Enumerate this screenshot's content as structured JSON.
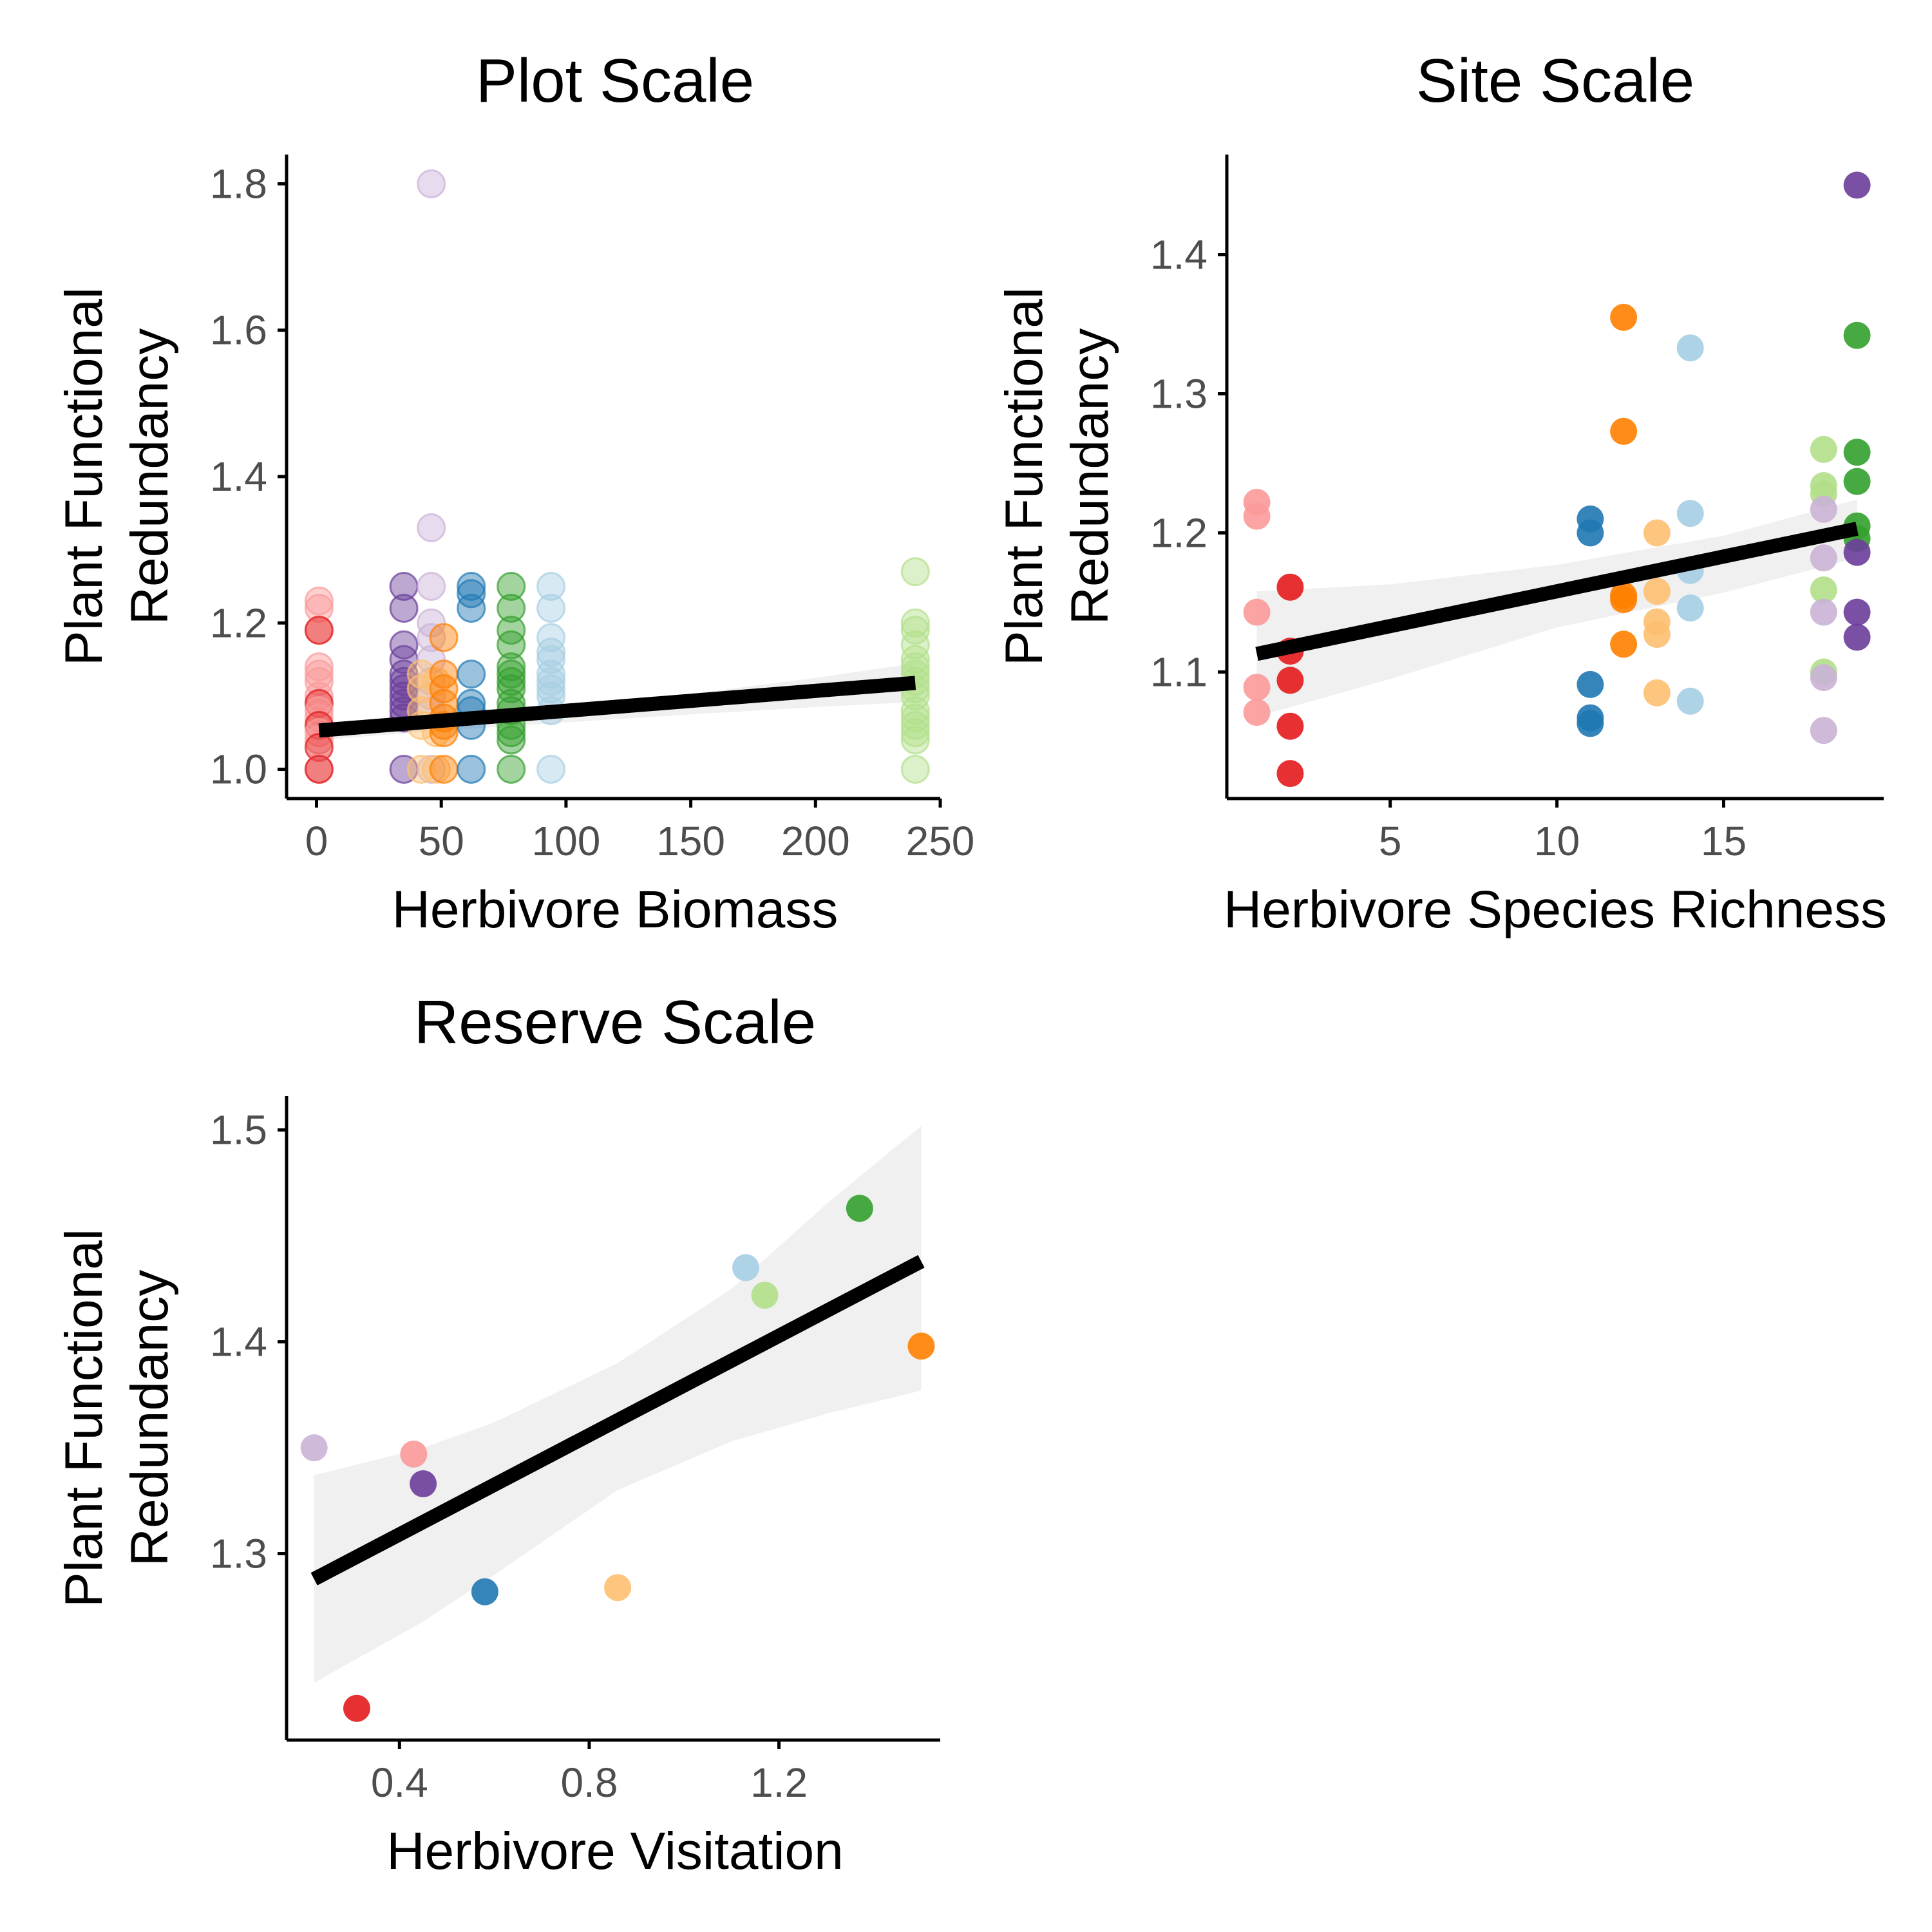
{
  "chart_data": [
    {
      "type": "scatter",
      "title": "Plot Scale",
      "xlabel": "Herbivore Biomass",
      "ylabel_lines": [
        "Plant Functional",
        "Redundancy"
      ],
      "xlim": [
        -12,
        250
      ],
      "ylim": [
        0.96,
        1.84
      ],
      "xticks": [
        0,
        50,
        100,
        150,
        200,
        250
      ],
      "yticks": [
        1.0,
        1.2,
        1.4,
        1.6,
        1.8
      ],
      "xtick_labels": [
        "0",
        "50",
        "100",
        "150",
        "200",
        "250"
      ],
      "ytick_labels": [
        "1.0",
        "1.2",
        "1.4",
        "1.6",
        "1.8"
      ],
      "point_opacity": 0.45,
      "points": [
        {
          "x": 1,
          "y": 1.23,
          "color": "#fb9a99"
        },
        {
          "x": 1,
          "y": 1.22,
          "color": "#fb9a99"
        },
        {
          "x": 1,
          "y": 1.19,
          "color": "#fb9a99"
        },
        {
          "x": 1,
          "y": 1.19,
          "color": "#e31a1c"
        },
        {
          "x": 1,
          "y": 1.14,
          "color": "#fb9a99"
        },
        {
          "x": 1,
          "y": 1.13,
          "color": "#fb9a99"
        },
        {
          "x": 1,
          "y": 1.12,
          "color": "#fb9a99"
        },
        {
          "x": 1,
          "y": 1.1,
          "color": "#fb9a99"
        },
        {
          "x": 1,
          "y": 1.09,
          "color": "#e31a1c"
        },
        {
          "x": 1,
          "y": 1.08,
          "color": "#fb9a99"
        },
        {
          "x": 1,
          "y": 1.07,
          "color": "#fb9a99"
        },
        {
          "x": 1,
          "y": 1.06,
          "color": "#e31a1c"
        },
        {
          "x": 1,
          "y": 1.05,
          "color": "#fb9a99"
        },
        {
          "x": 1,
          "y": 1.04,
          "color": "#fb9a99"
        },
        {
          "x": 1,
          "y": 1.03,
          "color": "#e31a1c"
        },
        {
          "x": 1,
          "y": 1.0,
          "color": "#fb9a99"
        },
        {
          "x": 1,
          "y": 1.0,
          "color": "#e31a1c"
        },
        {
          "x": 35,
          "y": 1.25,
          "color": "#6a3d9a"
        },
        {
          "x": 35,
          "y": 1.22,
          "color": "#6a3d9a"
        },
        {
          "x": 35,
          "y": 1.17,
          "color": "#6a3d9a"
        },
        {
          "x": 35,
          "y": 1.15,
          "color": "#6a3d9a"
        },
        {
          "x": 35,
          "y": 1.13,
          "color": "#6a3d9a"
        },
        {
          "x": 35,
          "y": 1.12,
          "color": "#6a3d9a"
        },
        {
          "x": 35,
          "y": 1.11,
          "color": "#6a3d9a"
        },
        {
          "x": 35,
          "y": 1.1,
          "color": "#6a3d9a"
        },
        {
          "x": 35,
          "y": 1.09,
          "color": "#6a3d9a"
        },
        {
          "x": 35,
          "y": 1.08,
          "color": "#6a3d9a"
        },
        {
          "x": 35,
          "y": 1.07,
          "color": "#6a3d9a"
        },
        {
          "x": 35,
          "y": 1.0,
          "color": "#6a3d9a"
        },
        {
          "x": 46,
          "y": 1.8,
          "color": "#cab2d6"
        },
        {
          "x": 46,
          "y": 1.33,
          "color": "#cab2d6"
        },
        {
          "x": 46,
          "y": 1.25,
          "color": "#cab2d6"
        },
        {
          "x": 46,
          "y": 1.2,
          "color": "#cab2d6"
        },
        {
          "x": 46,
          "y": 1.18,
          "color": "#cab2d6"
        },
        {
          "x": 46,
          "y": 1.15,
          "color": "#cab2d6"
        },
        {
          "x": 46,
          "y": 1.12,
          "color": "#cab2d6"
        },
        {
          "x": 46,
          "y": 1.1,
          "color": "#cab2d6"
        },
        {
          "x": 46,
          "y": 1.08,
          "color": "#cab2d6"
        },
        {
          "x": 46,
          "y": 1.0,
          "color": "#cab2d6"
        },
        {
          "x": 42,
          "y": 1.13,
          "color": "#fdbf6f"
        },
        {
          "x": 42,
          "y": 1.11,
          "color": "#fdbf6f"
        },
        {
          "x": 42,
          "y": 1.08,
          "color": "#fdbf6f"
        },
        {
          "x": 42,
          "y": 1.06,
          "color": "#fdbf6f"
        },
        {
          "x": 42,
          "y": 1.0,
          "color": "#fdbf6f"
        },
        {
          "x": 48,
          "y": 1.12,
          "color": "#fdbf6f"
        },
        {
          "x": 48,
          "y": 1.05,
          "color": "#fdbf6f"
        },
        {
          "x": 48,
          "y": 1.0,
          "color": "#fdbf6f"
        },
        {
          "x": 51,
          "y": 1.18,
          "color": "#ff7f00"
        },
        {
          "x": 51,
          "y": 1.13,
          "color": "#ff7f00"
        },
        {
          "x": 51,
          "y": 1.11,
          "color": "#ff7f00"
        },
        {
          "x": 51,
          "y": 1.09,
          "color": "#ff7f00"
        },
        {
          "x": 51,
          "y": 1.07,
          "color": "#ff7f00"
        },
        {
          "x": 51,
          "y": 1.06,
          "color": "#ff7f00"
        },
        {
          "x": 51,
          "y": 1.05,
          "color": "#ff7f00"
        },
        {
          "x": 51,
          "y": 1.0,
          "color": "#ff7f00"
        },
        {
          "x": 62,
          "y": 1.25,
          "color": "#1f78b4"
        },
        {
          "x": 62,
          "y": 1.24,
          "color": "#1f78b4"
        },
        {
          "x": 62,
          "y": 1.22,
          "color": "#1f78b4"
        },
        {
          "x": 62,
          "y": 1.13,
          "color": "#1f78b4"
        },
        {
          "x": 62,
          "y": 1.09,
          "color": "#1f78b4"
        },
        {
          "x": 62,
          "y": 1.08,
          "color": "#1f78b4"
        },
        {
          "x": 62,
          "y": 1.06,
          "color": "#1f78b4"
        },
        {
          "x": 62,
          "y": 1.0,
          "color": "#1f78b4"
        },
        {
          "x": 78,
          "y": 1.25,
          "color": "#33a02c"
        },
        {
          "x": 78,
          "y": 1.22,
          "color": "#33a02c"
        },
        {
          "x": 78,
          "y": 1.19,
          "color": "#33a02c"
        },
        {
          "x": 78,
          "y": 1.17,
          "color": "#33a02c"
        },
        {
          "x": 78,
          "y": 1.14,
          "color": "#33a02c"
        },
        {
          "x": 78,
          "y": 1.13,
          "color": "#33a02c"
        },
        {
          "x": 78,
          "y": 1.12,
          "color": "#33a02c"
        },
        {
          "x": 78,
          "y": 1.11,
          "color": "#33a02c"
        },
        {
          "x": 78,
          "y": 1.09,
          "color": "#33a02c"
        },
        {
          "x": 78,
          "y": 1.08,
          "color": "#33a02c"
        },
        {
          "x": 78,
          "y": 1.06,
          "color": "#33a02c"
        },
        {
          "x": 78,
          "y": 1.05,
          "color": "#33a02c"
        },
        {
          "x": 78,
          "y": 1.04,
          "color": "#33a02c"
        },
        {
          "x": 78,
          "y": 1.0,
          "color": "#33a02c"
        },
        {
          "x": 94,
          "y": 1.25,
          "color": "#a6cee3"
        },
        {
          "x": 94,
          "y": 1.22,
          "color": "#a6cee3"
        },
        {
          "x": 94,
          "y": 1.18,
          "color": "#a6cee3"
        },
        {
          "x": 94,
          "y": 1.16,
          "color": "#a6cee3"
        },
        {
          "x": 94,
          "y": 1.15,
          "color": "#a6cee3"
        },
        {
          "x": 94,
          "y": 1.13,
          "color": "#a6cee3"
        },
        {
          "x": 94,
          "y": 1.12,
          "color": "#a6cee3"
        },
        {
          "x": 94,
          "y": 1.11,
          "color": "#a6cee3"
        },
        {
          "x": 94,
          "y": 1.1,
          "color": "#a6cee3"
        },
        {
          "x": 94,
          "y": 1.08,
          "color": "#a6cee3"
        },
        {
          "x": 94,
          "y": 1.0,
          "color": "#a6cee3"
        },
        {
          "x": 240,
          "y": 1.27,
          "color": "#b2df8a"
        },
        {
          "x": 240,
          "y": 1.2,
          "color": "#b2df8a"
        },
        {
          "x": 240,
          "y": 1.19,
          "color": "#b2df8a"
        },
        {
          "x": 240,
          "y": 1.17,
          "color": "#b2df8a"
        },
        {
          "x": 240,
          "y": 1.15,
          "color": "#b2df8a"
        },
        {
          "x": 240,
          "y": 1.14,
          "color": "#b2df8a"
        },
        {
          "x": 240,
          "y": 1.13,
          "color": "#b2df8a"
        },
        {
          "x": 240,
          "y": 1.12,
          "color": "#b2df8a"
        },
        {
          "x": 240,
          "y": 1.11,
          "color": "#b2df8a"
        },
        {
          "x": 240,
          "y": 1.1,
          "color": "#b2df8a"
        },
        {
          "x": 240,
          "y": 1.08,
          "color": "#b2df8a"
        },
        {
          "x": 240,
          "y": 1.07,
          "color": "#b2df8a"
        },
        {
          "x": 240,
          "y": 1.06,
          "color": "#b2df8a"
        },
        {
          "x": 240,
          "y": 1.05,
          "color": "#b2df8a"
        },
        {
          "x": 240,
          "y": 1.04,
          "color": "#b2df8a"
        },
        {
          "x": 240,
          "y": 1.0,
          "color": "#b2df8a"
        }
      ],
      "fit": {
        "x": [
          1,
          240
        ],
        "y": [
          1.053,
          1.118
        ]
      },
      "ci_upper": [
        [
          1,
          1.064
        ],
        [
          50,
          1.071
        ],
        [
          100,
          1.083
        ],
        [
          150,
          1.103
        ],
        [
          200,
          1.125
        ],
        [
          240,
          1.145
        ]
      ],
      "ci_lower": [
        [
          1,
          1.04
        ],
        [
          50,
          1.053
        ],
        [
          100,
          1.064
        ],
        [
          150,
          1.075
        ],
        [
          200,
          1.085
        ],
        [
          240,
          1.092
        ]
      ]
    },
    {
      "type": "scatter",
      "title": "Site Scale",
      "xlabel": "Herbivore Species Richness",
      "ylabel_lines": [
        "Plant Functional",
        "Redundancy"
      ],
      "xlim": [
        0.1,
        19.8
      ],
      "ylim": [
        1.009,
        1.472
      ],
      "xticks": [
        5,
        10,
        15
      ],
      "yticks": [
        1.1,
        1.2,
        1.3,
        1.4
      ],
      "xtick_labels": [
        "5",
        "10",
        "15"
      ],
      "ytick_labels": [
        "1.1",
        "1.2",
        "1.3",
        "1.4"
      ],
      "point_opacity": 0.9,
      "points": [
        {
          "x": 1,
          "y": 1.222,
          "color": "#fb9a99"
        },
        {
          "x": 1,
          "y": 1.212,
          "color": "#fb9a99"
        },
        {
          "x": 1,
          "y": 1.143,
          "color": "#fb9a99"
        },
        {
          "x": 1,
          "y": 1.089,
          "color": "#fb9a99"
        },
        {
          "x": 1,
          "y": 1.071,
          "color": "#fb9a99"
        },
        {
          "x": 2,
          "y": 1.161,
          "color": "#e31a1c"
        },
        {
          "x": 2,
          "y": 1.115,
          "color": "#e31a1c"
        },
        {
          "x": 2,
          "y": 1.094,
          "color": "#e31a1c"
        },
        {
          "x": 2,
          "y": 1.061,
          "color": "#e31a1c"
        },
        {
          "x": 2,
          "y": 1.027,
          "color": "#e31a1c"
        },
        {
          "x": 11,
          "y": 1.21,
          "color": "#1f78b4"
        },
        {
          "x": 11,
          "y": 1.2,
          "color": "#1f78b4"
        },
        {
          "x": 11,
          "y": 1.091,
          "color": "#1f78b4"
        },
        {
          "x": 11,
          "y": 1.067,
          "color": "#1f78b4"
        },
        {
          "x": 11,
          "y": 1.063,
          "color": "#1f78b4"
        },
        {
          "x": 12,
          "y": 1.355,
          "color": "#ff7f00"
        },
        {
          "x": 12,
          "y": 1.273,
          "color": "#ff7f00"
        },
        {
          "x": 12,
          "y": 1.155,
          "color": "#ff7f00"
        },
        {
          "x": 12,
          "y": 1.152,
          "color": "#ff7f00"
        },
        {
          "x": 12,
          "y": 1.12,
          "color": "#ff7f00"
        },
        {
          "x": 13,
          "y": 1.2,
          "color": "#fdbf6f"
        },
        {
          "x": 13,
          "y": 1.158,
          "color": "#fdbf6f"
        },
        {
          "x": 13,
          "y": 1.136,
          "color": "#fdbf6f"
        },
        {
          "x": 13,
          "y": 1.127,
          "color": "#fdbf6f"
        },
        {
          "x": 13,
          "y": 1.085,
          "color": "#fdbf6f"
        },
        {
          "x": 14,
          "y": 1.333,
          "color": "#a6cee3"
        },
        {
          "x": 14,
          "y": 1.214,
          "color": "#a6cee3"
        },
        {
          "x": 14,
          "y": 1.173,
          "color": "#a6cee3"
        },
        {
          "x": 14,
          "y": 1.146,
          "color": "#a6cee3"
        },
        {
          "x": 14,
          "y": 1.079,
          "color": "#a6cee3"
        },
        {
          "x": 18,
          "y": 1.26,
          "color": "#b2df8a"
        },
        {
          "x": 18,
          "y": 1.234,
          "color": "#b2df8a"
        },
        {
          "x": 18,
          "y": 1.228,
          "color": "#b2df8a"
        },
        {
          "x": 18,
          "y": 1.159,
          "color": "#b2df8a"
        },
        {
          "x": 18,
          "y": 1.1,
          "color": "#b2df8a"
        },
        {
          "x": 18,
          "y": 1.217,
          "color": "#cab2d6"
        },
        {
          "x": 18,
          "y": 1.182,
          "color": "#cab2d6"
        },
        {
          "x": 18,
          "y": 1.143,
          "color": "#cab2d6"
        },
        {
          "x": 18,
          "y": 1.096,
          "color": "#cab2d6"
        },
        {
          "x": 18,
          "y": 1.058,
          "color": "#cab2d6"
        },
        {
          "x": 19,
          "y": 1.342,
          "color": "#33a02c"
        },
        {
          "x": 19,
          "y": 1.258,
          "color": "#33a02c"
        },
        {
          "x": 19,
          "y": 1.237,
          "color": "#33a02c"
        },
        {
          "x": 19,
          "y": 1.205,
          "color": "#33a02c"
        },
        {
          "x": 19,
          "y": 1.196,
          "color": "#33a02c"
        },
        {
          "x": 19,
          "y": 1.45,
          "color": "#6a3d9a"
        },
        {
          "x": 19,
          "y": 1.186,
          "color": "#6a3d9a"
        },
        {
          "x": 19,
          "y": 1.143,
          "color": "#6a3d9a"
        },
        {
          "x": 19,
          "y": 1.125,
          "color": "#6a3d9a"
        }
      ],
      "fit": {
        "x": [
          1,
          19
        ],
        "y": [
          1.113,
          1.203
        ]
      },
      "ci_upper": [
        [
          1,
          1.158
        ],
        [
          5,
          1.163
        ],
        [
          10,
          1.177
        ],
        [
          15,
          1.198
        ],
        [
          19,
          1.224
        ]
      ],
      "ci_lower": [
        [
          1,
          1.068
        ],
        [
          5,
          1.095
        ],
        [
          10,
          1.132
        ],
        [
          15,
          1.157
        ],
        [
          19,
          1.182
        ]
      ]
    },
    {
      "type": "scatter",
      "title": "Reserve Scale",
      "xlabel": "Herbivore Visitation",
      "ylabel_lines": [
        "Plant Functional",
        "Redundancy"
      ],
      "xlim": [
        0.162,
        1.54
      ],
      "ylim": [
        1.212,
        1.516
      ],
      "xticks": [
        0.4,
        0.8,
        1.2
      ],
      "yticks": [
        1.3,
        1.4,
        1.5
      ],
      "xtick_labels": [
        "0.4",
        "0.8",
        "1.2"
      ],
      "ytick_labels": [
        "1.3",
        "1.4",
        "1.5"
      ],
      "point_opacity": 0.9,
      "points": [
        {
          "x": 0.22,
          "y": 1.35,
          "color": "#cab2d6"
        },
        {
          "x": 0.31,
          "y": 1.227,
          "color": "#e31a1c"
        },
        {
          "x": 0.43,
          "y": 1.347,
          "color": "#fb9a99"
        },
        {
          "x": 0.45,
          "y": 1.333,
          "color": "#6a3d9a"
        },
        {
          "x": 0.58,
          "y": 1.282,
          "color": "#1f78b4"
        },
        {
          "x": 0.86,
          "y": 1.284,
          "color": "#fdbf6f"
        },
        {
          "x": 1.13,
          "y": 1.435,
          "color": "#a6cee3"
        },
        {
          "x": 1.17,
          "y": 1.422,
          "color": "#b2df8a"
        },
        {
          "x": 1.37,
          "y": 1.463,
          "color": "#33a02c"
        },
        {
          "x": 1.5,
          "y": 1.398,
          "color": "#ff7f00"
        }
      ],
      "fit": {
        "x": [
          0.22,
          1.5
        ],
        "y": [
          1.288,
          1.438
        ]
      },
      "ci_upper": [
        [
          0.22,
          1.337
        ],
        [
          0.45,
          1.35
        ],
        [
          0.6,
          1.362
        ],
        [
          0.86,
          1.39
        ],
        [
          1.1,
          1.425
        ],
        [
          1.3,
          1.465
        ],
        [
          1.5,
          1.502
        ]
      ],
      "ci_lower": [
        [
          0.22,
          1.239
        ],
        [
          0.45,
          1.268
        ],
        [
          0.6,
          1.29
        ],
        [
          0.86,
          1.33
        ],
        [
          1.1,
          1.353
        ],
        [
          1.3,
          1.366
        ],
        [
          1.5,
          1.377
        ]
      ]
    }
  ]
}
